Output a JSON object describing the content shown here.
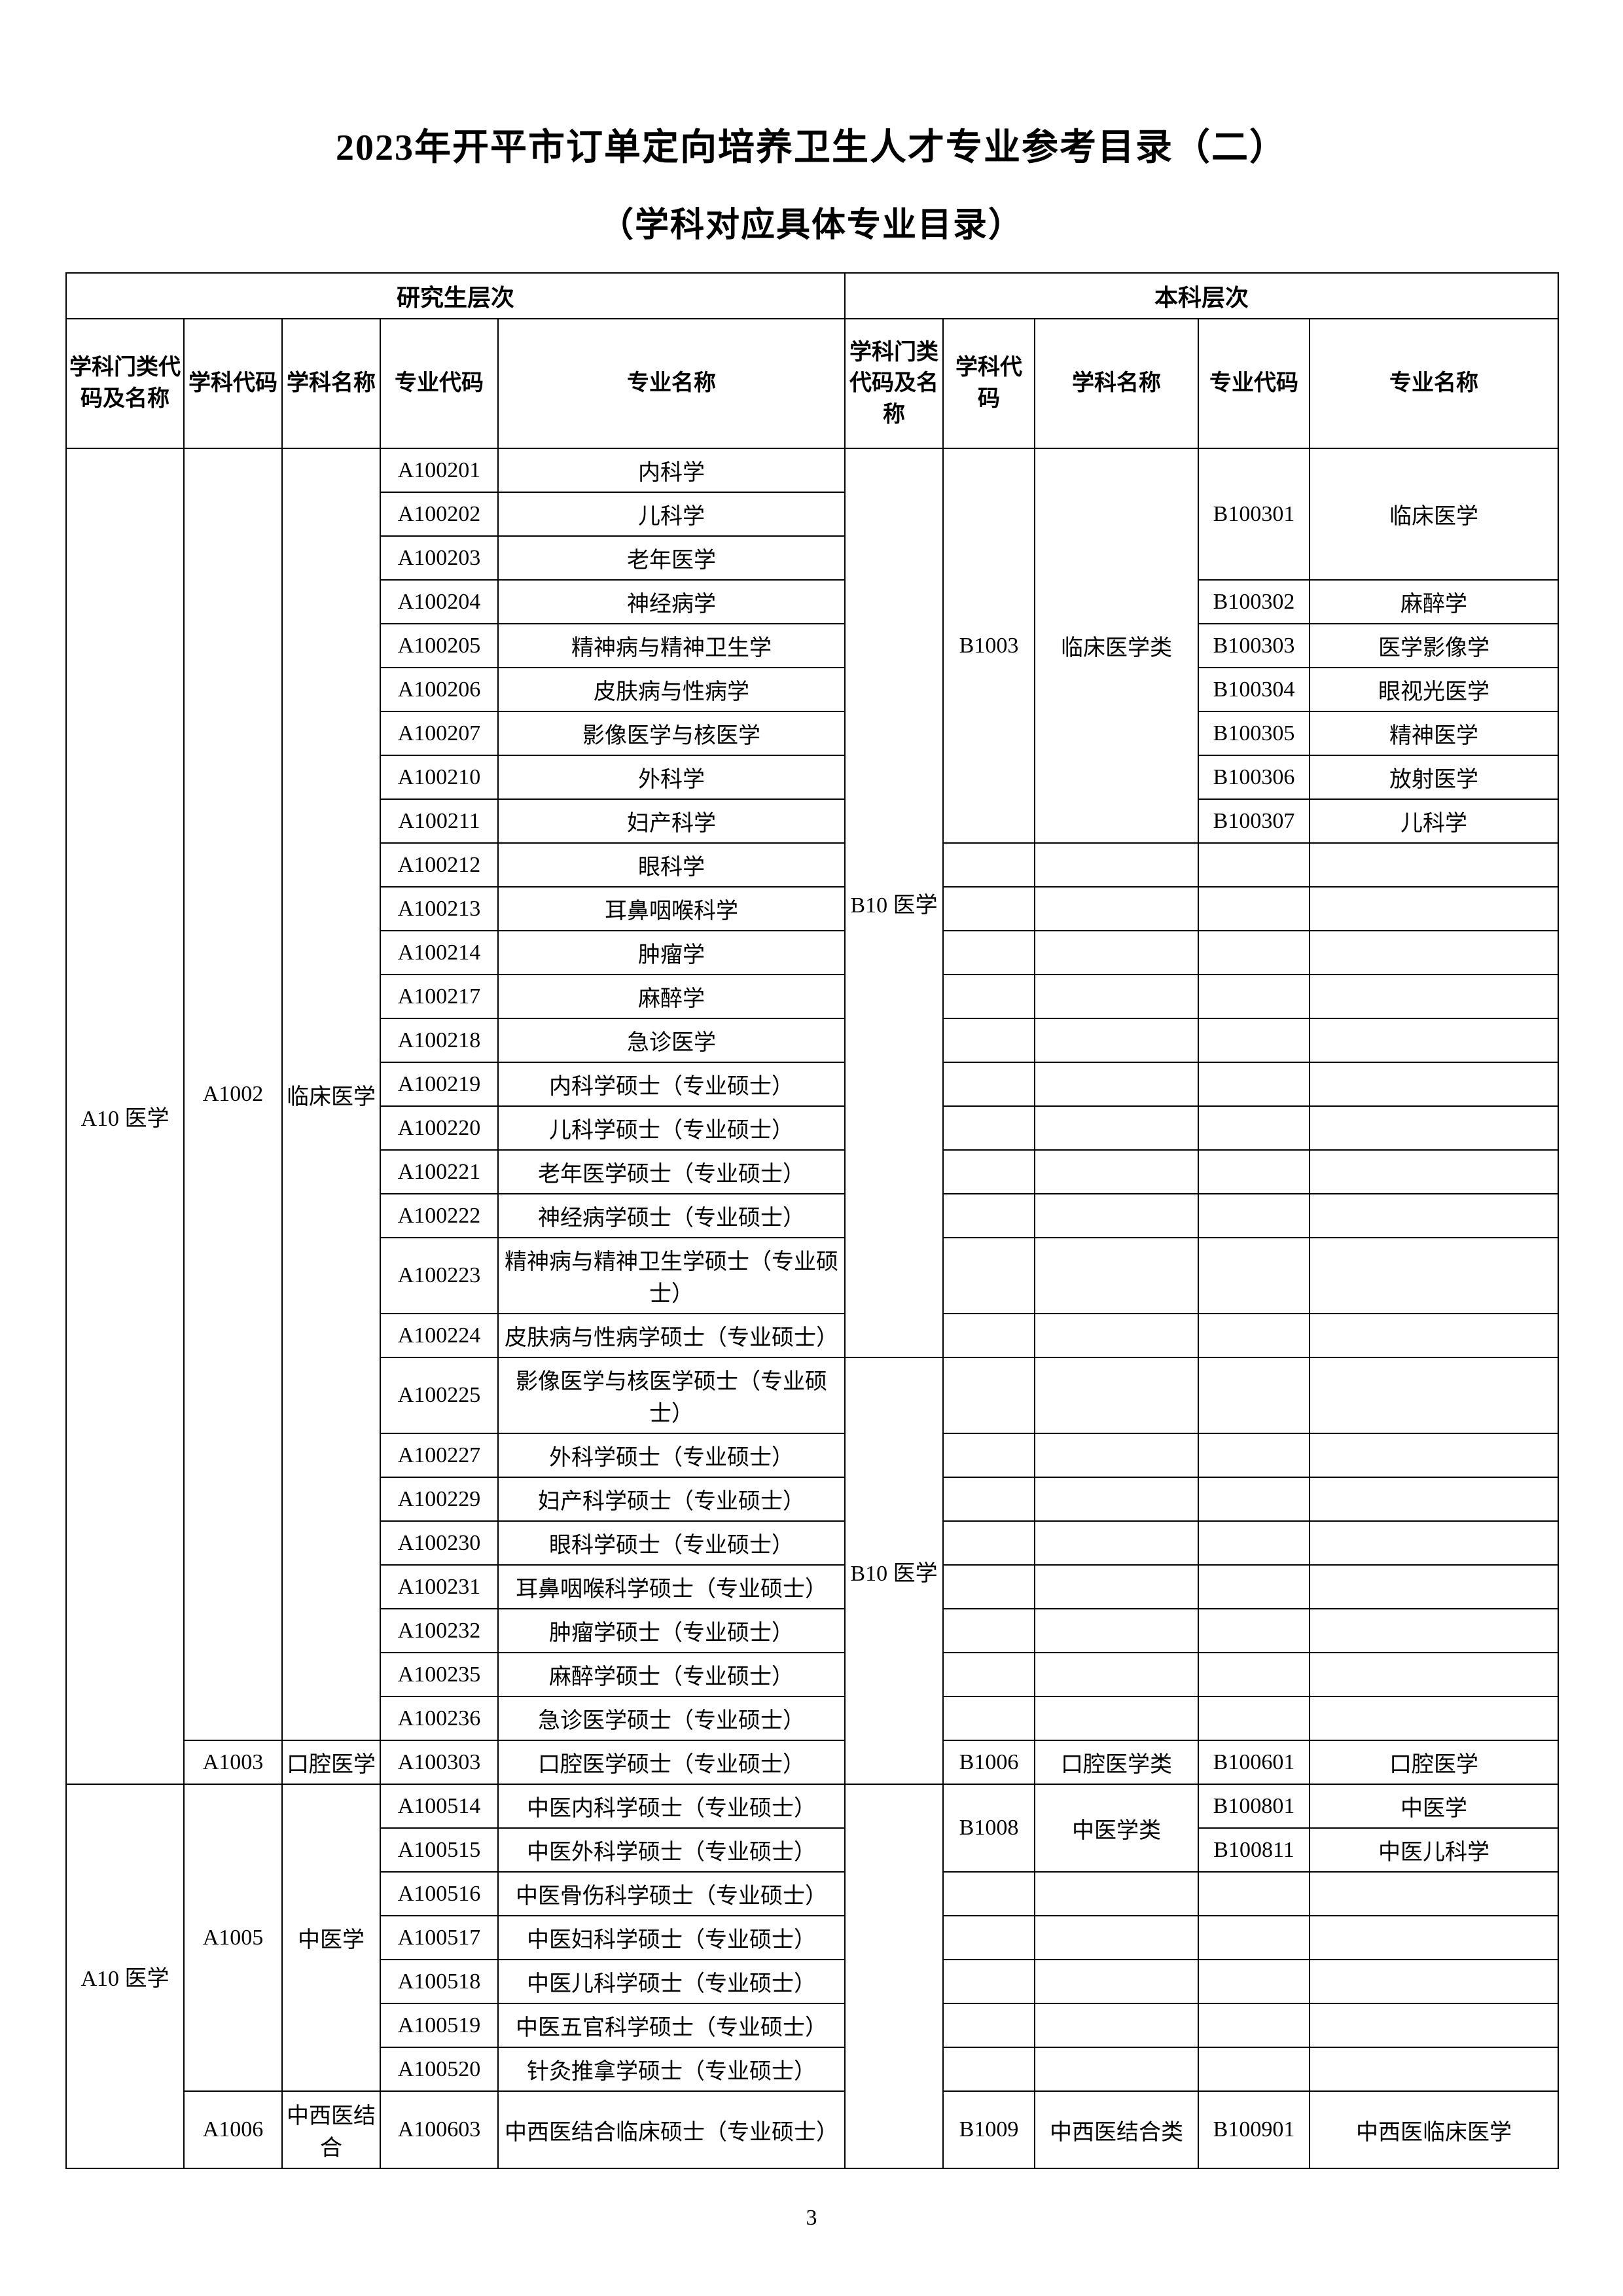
{
  "title": "2023年开平市订单定向培养卫生人才专业参考目录（二）",
  "subtitle": "（学科对应具体专业目录）",
  "page_number": "3",
  "headers": {
    "grad_level": "研究生层次",
    "undergrad_level": "本科层次",
    "cat_code_name": "学科门类代码及名称",
    "subj_code": "学科代码",
    "subj_name": "学科名称",
    "major_code": "专业代码",
    "major_name": "专业名称",
    "u_cat_code_name": "学科门类代码及名称",
    "u_subj_code": "学科代码",
    "u_subj_name": "学科名称",
    "u_major_code": "专业代码",
    "u_major_name": "专业名称"
  },
  "grad_cat": "A10 医学",
  "grad_subjects": [
    {
      "code": "A1002",
      "name": "临床医学"
    },
    {
      "code": "A1003",
      "name": "口腔医学"
    },
    {
      "code": "A1005",
      "name": "中医学"
    },
    {
      "code": "A1006",
      "name": "中西医结合"
    }
  ],
  "grad_majors_1002": [
    {
      "code": "A100201",
      "name": "内科学"
    },
    {
      "code": "A100202",
      "name": "儿科学"
    },
    {
      "code": "A100203",
      "name": "老年医学"
    },
    {
      "code": "A100204",
      "name": "神经病学"
    },
    {
      "code": "A100205",
      "name": "精神病与精神卫生学"
    },
    {
      "code": "A100206",
      "name": "皮肤病与性病学"
    },
    {
      "code": "A100207",
      "name": "影像医学与核医学"
    },
    {
      "code": "A100210",
      "name": "外科学"
    },
    {
      "code": "A100211",
      "name": "妇产科学"
    },
    {
      "code": "A100212",
      "name": "眼科学"
    },
    {
      "code": "A100213",
      "name": "耳鼻咽喉科学"
    },
    {
      "code": "A100214",
      "name": "肿瘤学"
    },
    {
      "code": "A100217",
      "name": "麻醉学"
    },
    {
      "code": "A100218",
      "name": "急诊医学"
    },
    {
      "code": "A100219",
      "name": "内科学硕士（专业硕士）"
    },
    {
      "code": "A100220",
      "name": "儿科学硕士（专业硕士）"
    },
    {
      "code": "A100221",
      "name": "老年医学硕士（专业硕士）"
    },
    {
      "code": "A100222",
      "name": "神经病学硕士（专业硕士）"
    },
    {
      "code": "A100223",
      "name": "精神病与精神卫生学硕士（专业硕士）"
    },
    {
      "code": "A100224",
      "name": "皮肤病与性病学硕士（专业硕士）"
    },
    {
      "code": "A100225",
      "name": "影像医学与核医学硕士（专业硕士）"
    },
    {
      "code": "A100227",
      "name": "外科学硕士（专业硕士）"
    },
    {
      "code": "A100229",
      "name": "妇产科学硕士（专业硕士）"
    },
    {
      "code": "A100230",
      "name": "眼科学硕士（专业硕士）"
    },
    {
      "code": "A100231",
      "name": "耳鼻咽喉科学硕士（专业硕士）"
    },
    {
      "code": "A100232",
      "name": "肿瘤学硕士（专业硕士）"
    },
    {
      "code": "A100235",
      "name": "麻醉学硕士（专业硕士）"
    },
    {
      "code": "A100236",
      "name": "急诊医学硕士（专业硕士）"
    }
  ],
  "grad_majors_1003": [
    {
      "code": "A100303",
      "name": "口腔医学硕士（专业硕士）"
    }
  ],
  "grad_majors_1005": [
    {
      "code": "A100514",
      "name": "中医内科学硕士（专业硕士）"
    },
    {
      "code": "A100515",
      "name": "中医外科学硕士（专业硕士）"
    },
    {
      "code": "A100516",
      "name": "中医骨伤科学硕士（专业硕士）"
    },
    {
      "code": "A100517",
      "name": "中医妇科学硕士（专业硕士）"
    },
    {
      "code": "A100518",
      "name": "中医儿科学硕士（专业硕士）"
    },
    {
      "code": "A100519",
      "name": "中医五官科学硕士（专业硕士）"
    },
    {
      "code": "A100520",
      "name": "针灸推拿学硕士（专业硕士）"
    }
  ],
  "grad_majors_1006": [
    {
      "code": "A100603",
      "name": "中西医结合临床硕士（专业硕士）"
    }
  ],
  "undergrad_cat": "B10 医学",
  "u_b1003": {
    "code": "B1003",
    "name": "临床医学类"
  },
  "u_b1003_majors": [
    {
      "code": "B100301",
      "name": "临床医学"
    },
    {
      "code": "B100302",
      "name": "麻醉学"
    },
    {
      "code": "B100303",
      "name": "医学影像学"
    },
    {
      "code": "B100304",
      "name": "眼视光医学"
    },
    {
      "code": "B100305",
      "name": "精神医学"
    },
    {
      "code": "B100306",
      "name": "放射医学"
    },
    {
      "code": "B100307",
      "name": "儿科学"
    }
  ],
  "u_b1006": {
    "code": "B1006",
    "name": "口腔医学类"
  },
  "u_b1006_major": {
    "code": "B100601",
    "name": "口腔医学"
  },
  "u_b1008": {
    "code": "B1008",
    "name": "中医学类"
  },
  "u_b1008_majors": [
    {
      "code": "B100801",
      "name": "中医学"
    },
    {
      "code": "B100811",
      "name": "中医儿科学"
    }
  ],
  "u_b1009": {
    "code": "B1009",
    "name": "中西医结合类"
  },
  "u_b1009_major": {
    "code": "B100901",
    "name": "中西医临床医学"
  },
  "col_widths": {
    "cat": 180,
    "subj_code": 150,
    "subj_name": 150,
    "major_code": 180,
    "major_name": 530,
    "u_cat": 150,
    "u_subj_code": 140,
    "u_subj_name": 250,
    "u_major_code": 170,
    "u_major_name": 380
  }
}
